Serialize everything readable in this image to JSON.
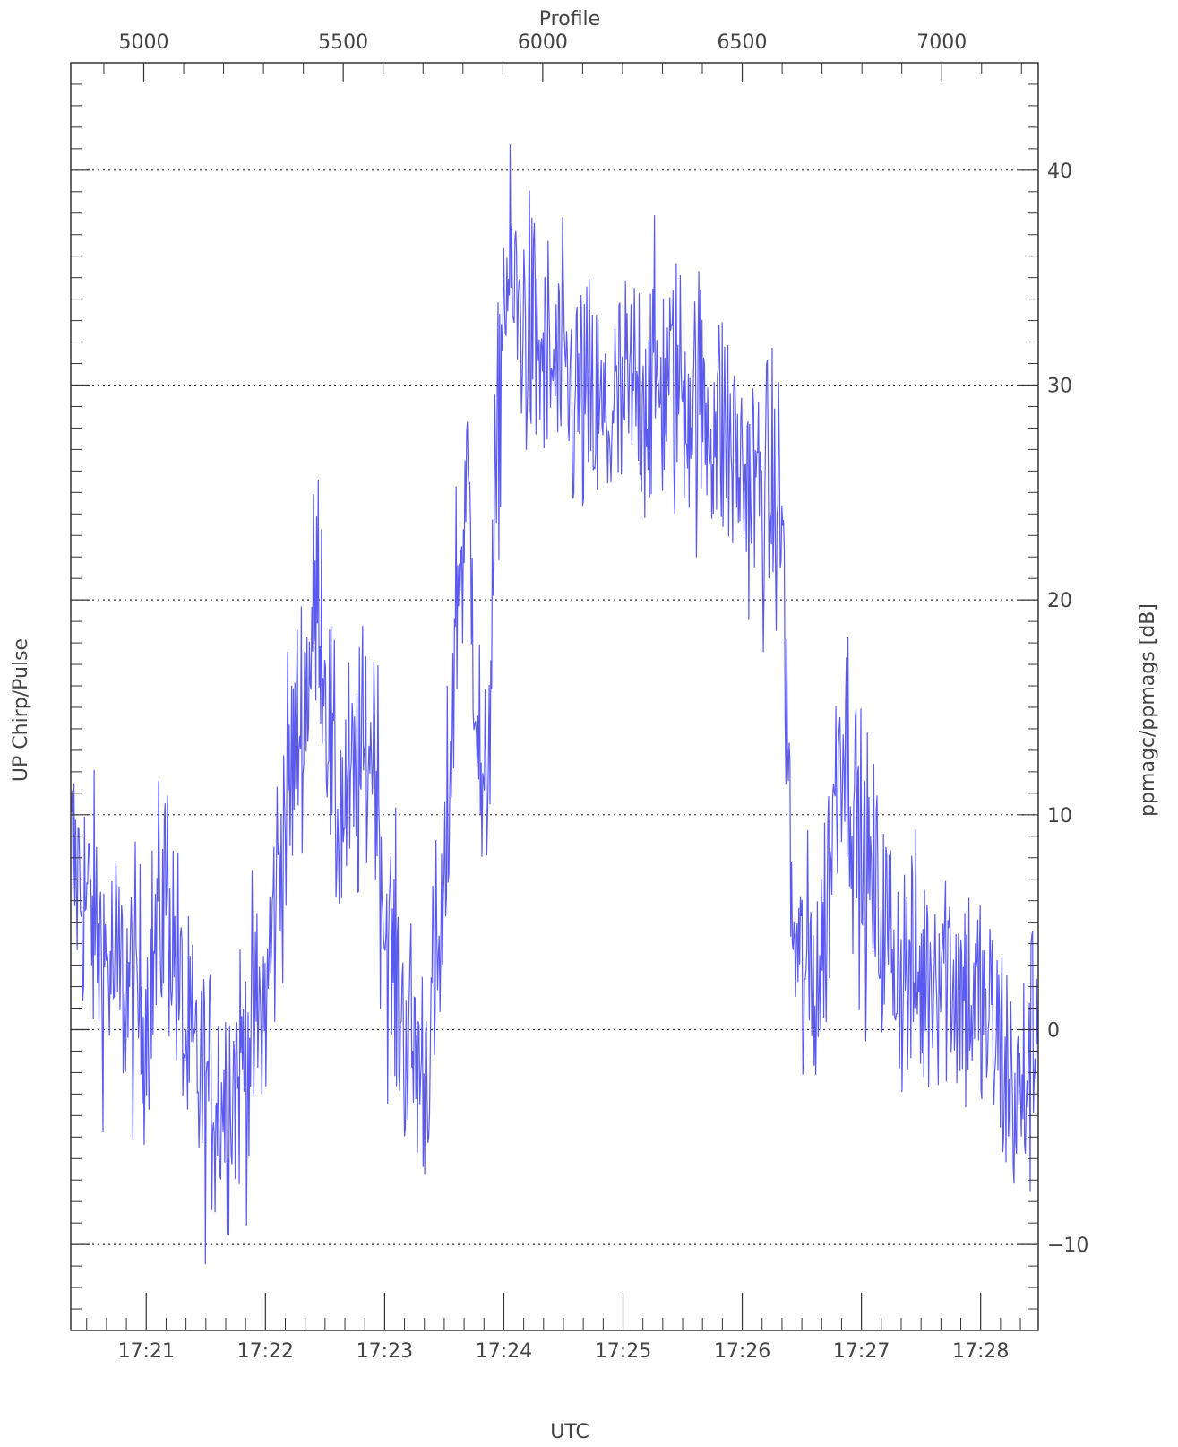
{
  "chart_data": {
    "type": "line",
    "title": "",
    "top_axis": {
      "label": "Profile",
      "ticks": [
        5000,
        5500,
        6000,
        6500,
        7000
      ],
      "tick_labels": [
        "5000",
        "5500",
        "6000",
        "6500",
        "7000"
      ],
      "range": [
        4817,
        7242
      ]
    },
    "bottom_axis": {
      "label": "UTC",
      "ticks": [
        "17:21",
        "17:22",
        "17:23",
        "17:24",
        "17:25",
        "17:26",
        "17:27",
        "17:28"
      ],
      "range": [
        "17:20:22",
        "17:28:29"
      ]
    },
    "left_axis": {
      "label": "UP Chirp/Pulse"
    },
    "right_axis": {
      "label": "ppmagc/ppmags [dB]",
      "ticks": [
        -10,
        0,
        10,
        20,
        30,
        40
      ],
      "tick_labels": [
        "−10",
        "0",
        "10",
        "20",
        "30",
        "40"
      ],
      "range": [
        -14,
        45
      ]
    },
    "grid": "horizontal dotted at y ticks",
    "series": [
      {
        "color": "#5a5af0",
        "x": [
          "17:20:22",
          "17:20:30",
          "17:20:40",
          "17:20:50",
          "17:21:00",
          "17:21:10",
          "17:21:20",
          "17:21:30",
          "17:21:40",
          "17:21:50",
          "17:22:00",
          "17:22:08",
          "17:22:15",
          "17:22:22",
          "17:22:27",
          "17:22:35",
          "17:22:45",
          "17:22:55",
          "17:23:00",
          "17:23:10",
          "17:23:20",
          "17:23:30",
          "17:23:36",
          "17:23:42",
          "17:23:50",
          "17:24:00",
          "17:24:10",
          "17:24:20",
          "17:24:30",
          "17:24:40",
          "17:24:50",
          "17:25:00",
          "17:25:10",
          "17:25:20",
          "17:25:30",
          "17:25:40",
          "17:25:50",
          "17:26:00",
          "17:26:10",
          "17:26:20",
          "17:26:25",
          "17:26:30",
          "17:26:40",
          "17:26:50",
          "17:27:00",
          "17:27:10",
          "17:27:20",
          "17:27:30",
          "17:27:40",
          "17:27:50",
          "17:28:00",
          "17:28:10",
          "17:28:20",
          "17:28:29"
        ],
        "y": [
          8,
          6,
          3,
          2,
          1,
          7,
          -1,
          -3,
          -3,
          -1,
          1,
          9,
          13,
          17,
          21,
          10,
          11,
          14,
          5,
          0,
          -2,
          5,
          20,
          25,
          8,
          35,
          33,
          31,
          30,
          29,
          28,
          29,
          30,
          30,
          30,
          29,
          28,
          26,
          25,
          24,
          5,
          2,
          3,
          15,
          8,
          5,
          3,
          2,
          4,
          2,
          1,
          -1,
          -4,
          1
        ]
      }
    ]
  }
}
